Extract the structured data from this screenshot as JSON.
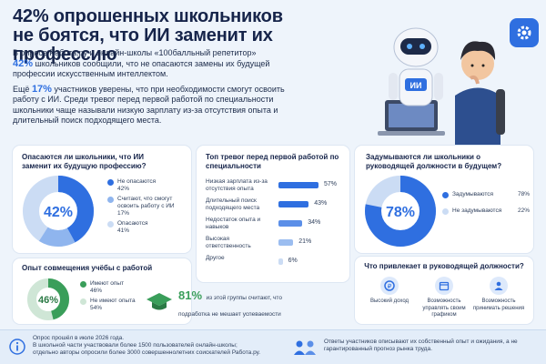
{
  "header": {
    "title_line1": "42% опрошенных школьников",
    "title_line2": "не боятся, что ИИ заменит их профессию"
  },
  "intro": {
    "p1_text": "В опросе Работа.ру и онлайн-школы «100балльный репетитор»",
    "p1_percent": "42%",
    "p1_rest": "школьников сообщили, что не опасаются замены их будущей профессии искусственным интеллектом.",
    "p2_start": "Ещё",
    "p2_percent": "17%",
    "p2_rest": "участников уверены, что при необходимости смогут освоить работу с ИИ. Среди тревог перед первой работой по специальности школьники чаще называли низкую зарплату из-за отсутствия опыта и длительный поиск подходящего места."
  },
  "robot": {
    "label": "ИИ"
  },
  "fear_card": {
    "title": "Опасаются ли школьники, что ИИ заменит их будущую профессию?",
    "center_label": "42%",
    "items": [
      {
        "label": "Не опасаются",
        "value": "42%",
        "color": "#2f6fe0"
      },
      {
        "label": "Считают, что смогут освоить работу с ИИ",
        "value": "17%",
        "color": "#8fb5ee"
      },
      {
        "label": "Опасаются",
        "value": "41%",
        "color": "#cbdcf4"
      }
    ]
  },
  "worries_card": {
    "title": "Топ тревог перед первой работой по специальности",
    "items": [
      {
        "label": "Низкая зарплата из-за отсутствия опыта",
        "value": "57%"
      },
      {
        "label": "Длительный поиск подходящего места",
        "value": "43%"
      },
      {
        "label": "Недостаток опыта и навыков",
        "value": "34%"
      },
      {
        "label": "Высокая ответственность",
        "value": "21%"
      },
      {
        "label": "Другое",
        "value": "6%"
      }
    ]
  },
  "leader_card": {
    "title": "Задумываются ли школьники о руководящей должности в будущем?",
    "center_label": "78%",
    "items": [
      {
        "label": "Задумываются",
        "value": "78%",
        "color": "#2f6fe0"
      },
      {
        "label": "Не задумываются",
        "value": "22%",
        "color": "#cbdcf4"
      }
    ]
  },
  "combine_card": {
    "title": "Опыт совмещения учёбы с работой",
    "center_label": "46%",
    "items": [
      {
        "label": "Имеют опыт",
        "value": "46%",
        "color": "#3a9e5a"
      },
      {
        "label": "Не имеют опыта",
        "value": "54%",
        "color": "#cfe6d6"
      }
    ],
    "note_percent": "81%",
    "note_text": "из этой группы считают, что подработка не мешает успеваемости"
  },
  "attract_card": {
    "title": "Что привлекает в руководящей должности?",
    "items": [
      {
        "label": "Высокий доход",
        "icon": "coin-icon"
      },
      {
        "label": "Возможность управлять своим графиком",
        "icon": "calendar-icon"
      },
      {
        "label": "Возможность принимать решения",
        "icon": "person-icon"
      }
    ]
  },
  "footer": {
    "left_line1": "Опрос прошёл в июле 2026 года.",
    "left_line2": "В школьной части участвовали более 1500 пользователей онлайн-школы;",
    "left_line3": "отдельно авторы опросили более 3000 совершеннолетних соискателей Работа.ру.",
    "right_text": "Ответы участников описывают их собственный опыт и ожидания, а не гарантированный прогноз рынка труда."
  },
  "colors": {
    "accent": "#2f6fe0",
    "green": "#3a9e5a",
    "navy": "#16244a"
  }
}
